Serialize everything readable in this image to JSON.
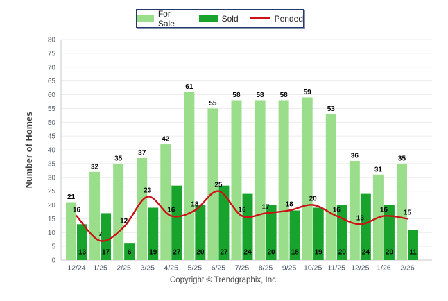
{
  "legend": {
    "items": [
      {
        "label": "For Sale"
      },
      {
        "label": "Sold"
      },
      {
        "label": "Pended"
      }
    ]
  },
  "colors": {
    "for_sale": "#9ade8c",
    "sold": "#18a42c",
    "pended": "#cc1217",
    "grid": "#ececec",
    "axis": "#c9c9c9"
  },
  "footer": {
    "copyright": "Copyright © Trendgraphix, Inc."
  },
  "chart_data": {
    "type": "bar",
    "title": "",
    "categories": [
      "12/24",
      "1/25",
      "2/25",
      "3/25",
      "4/25",
      "5/25",
      "6/25",
      "7/25",
      "8/25",
      "9/25",
      "10/25",
      "11/25",
      "12/25",
      "1/26",
      "2/26"
    ],
    "series": [
      {
        "name": "For Sale",
        "type": "bar",
        "values": [
          21,
          32,
          35,
          37,
          42,
          61,
          55,
          58,
          58,
          58,
          59,
          53,
          36,
          31,
          35
        ]
      },
      {
        "name": "Sold",
        "type": "bar",
        "values": [
          13,
          17,
          6,
          19,
          27,
          20,
          27,
          24,
          20,
          18,
          19,
          20,
          24,
          20,
          11
        ]
      },
      {
        "name": "Pended",
        "type": "line",
        "values": [
          16,
          7,
          12,
          23,
          16,
          18,
          25,
          16,
          17,
          18,
          20,
          16,
          13,
          16,
          15
        ]
      }
    ],
    "xlabel": "",
    "ylabel": "Number of Homes",
    "ylim": [
      0,
      80
    ],
    "ytick_step": 5,
    "grid": "horizontal",
    "legend_position": "top-center"
  }
}
